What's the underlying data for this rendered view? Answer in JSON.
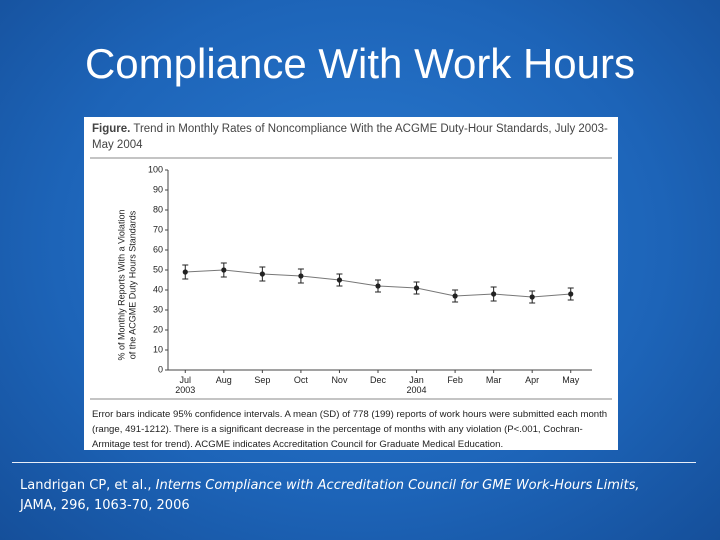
{
  "slide_title": "Compliance With Work Hours",
  "citation": [
    "Landrigan CP, et al., ",
    "Interns Compliance with Accreditation Council for GME Work-Hours Limits,",
    "JAMA, 296, 1063-70, 2006"
  ],
  "chart_data": {
    "type": "line",
    "figure_label": "Figure.",
    "title": "Trend in Monthly Rates of Noncompliance With the ACGME Duty-Hour Standards, July 2003-May 2004",
    "y_label": [
      "% of Monthly Reports With a Violation",
      "of the ACGME Duty Hours Standards"
    ],
    "categories": [
      "Jul 2003",
      "Aug",
      "Sep",
      "Oct",
      "Nov",
      "Dec",
      "Jan 2004",
      "Feb",
      "Mar",
      "Apr",
      "May"
    ],
    "values": [
      49,
      50,
      48,
      47,
      45,
      42,
      41,
      37,
      38,
      36.5,
      38
    ],
    "errors": [
      3.5,
      3.5,
      3.5,
      3.5,
      3,
      3,
      3,
      3,
      3.5,
      3,
      3
    ],
    "color": "#222222",
    "ylim": [
      0,
      100
    ],
    "yticks": [
      0,
      10,
      20,
      30,
      40,
      50,
      60,
      70,
      80,
      90,
      100
    ],
    "caption": "Error bars indicate 95% confidence intervals. A mean (SD) of 778 (199) reports of work hours were submitted each month (range, 491-1212). There is a significant decrease in the percentage of months with any violation (P<.001, Cochran-Armitage test for trend). ACGME indicates Accreditation Council for Graduate Medical Education."
  }
}
